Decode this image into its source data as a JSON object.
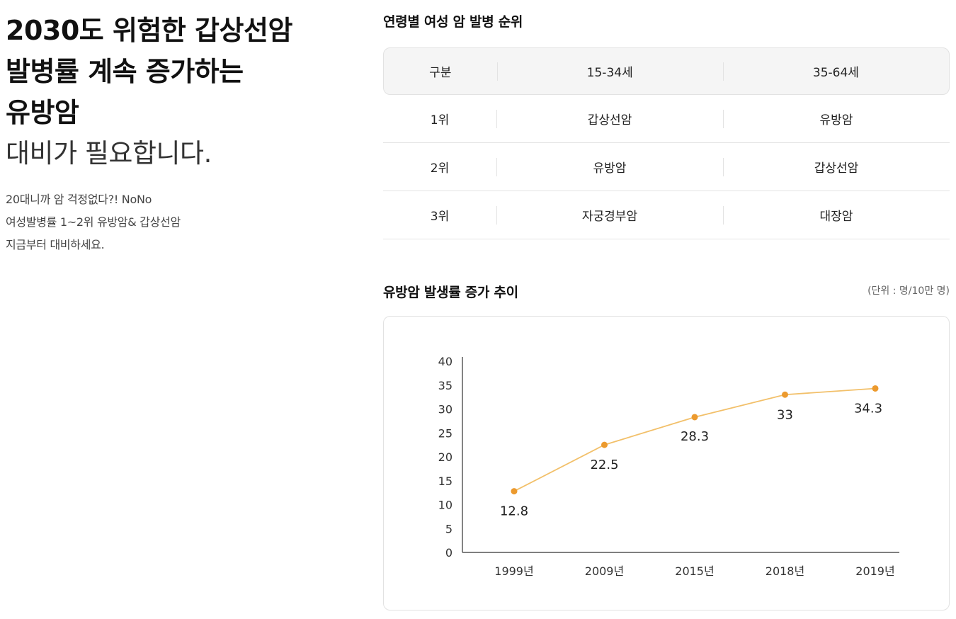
{
  "left": {
    "headline_lines": [
      "2030도 위험한 갑상선암",
      "발병률 계속 증가하는",
      "유방암"
    ],
    "subheadline": "대비가 필요합니다.",
    "desc_lines": [
      "20대니까 암 걱정없다?! NoNo",
      "여성발병률 1~2위 유방암& 갑상선암",
      "지금부터 대비하세요."
    ]
  },
  "ranking": {
    "title": "연령별 여성 암 발병 순위",
    "headers": [
      "구분",
      "15-34세",
      "35-64세"
    ],
    "rows": [
      [
        "1위",
        "갑상선암",
        "유방암"
      ],
      [
        "2위",
        "유방암",
        "갑상선암"
      ],
      [
        "3위",
        "자궁경부암",
        "대장암"
      ]
    ]
  },
  "trend": {
    "title": "유방암 발생률 증가 추이",
    "unit": "(단위 : 명/10만 명)"
  },
  "colors": {
    "line": "#f2c06a",
    "point": "#ec9a2e",
    "axis": "#333333"
  },
  "chart_data": {
    "type": "line",
    "categories": [
      "1999년",
      "2009년",
      "2015년",
      "2018년",
      "2019년"
    ],
    "series": [
      {
        "values": [
          12.8,
          22.5,
          28.3,
          33,
          34.3
        ]
      }
    ],
    "value_labels": [
      "12.8",
      "22.5",
      "28.3",
      "33",
      "34.3"
    ],
    "yticks": [
      0,
      5,
      10,
      15,
      20,
      25,
      30,
      35,
      40
    ],
    "ylim": [
      0,
      40
    ],
    "grid": false,
    "title": "유방암 발생률 증가 추이",
    "xlabel": "",
    "ylabel": ""
  }
}
